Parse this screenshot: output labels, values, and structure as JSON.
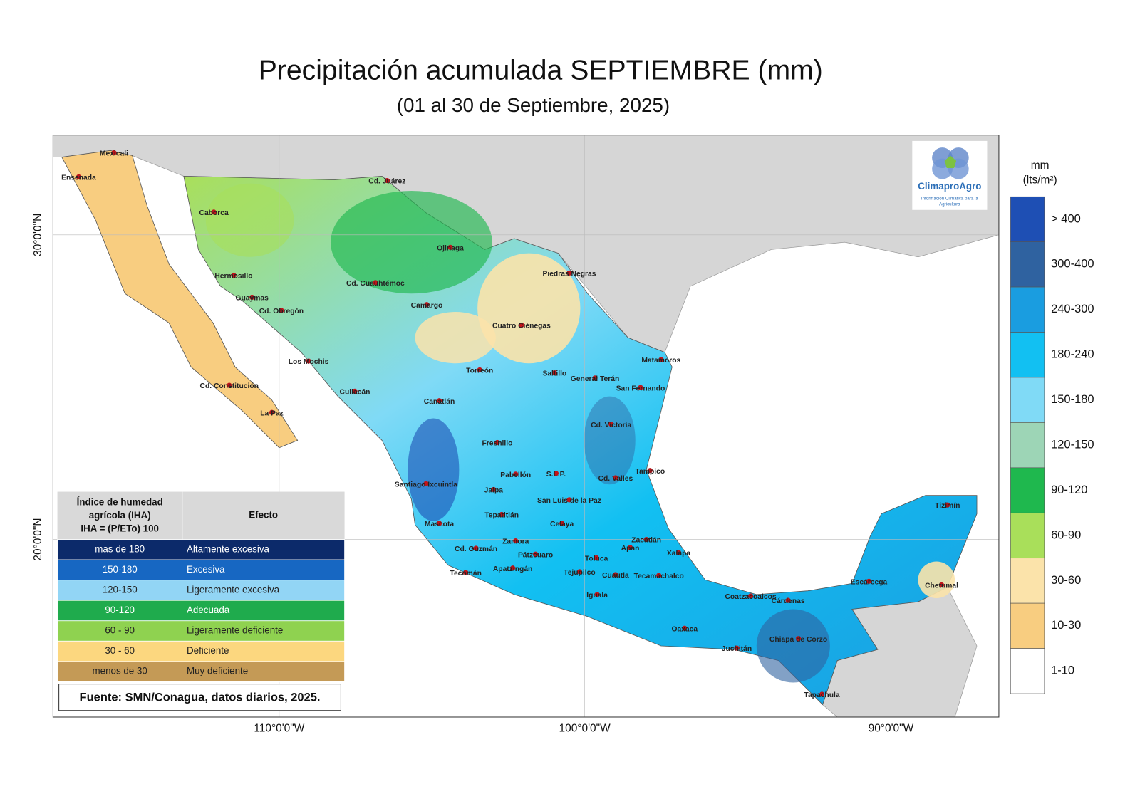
{
  "title": "Precipitación acumulada SEPTIEMBRE (mm)",
  "subtitle": "(01 al 30 de Septiembre, 2025)",
  "map": {
    "latitude_labels": [
      "30°0'0\"N",
      "20°0'0\"N"
    ],
    "longitude_labels": [
      "110°0'0\"W",
      "100°0'0\"W",
      "90°0'0\"W"
    ],
    "cities": [
      "Mexicali",
      "Ensenada",
      "Cd. Juárez",
      "Caborca",
      "Ojinaga",
      "Hermosillo",
      "Piedras Negras",
      "Cd. Cuauhtémoc",
      "Guaymas",
      "Camargo",
      "Cd. Obregón",
      "Cuatro Ciénegas",
      "Matamoros",
      "Los Mochis",
      "Torreón",
      "Saltillo",
      "General Terán",
      "San Fernando",
      "Cd. Constitución",
      "Culiacán",
      "Canatlán",
      "La Paz",
      "Cd. Victoria",
      "Fresnillo",
      "Tampico",
      "Pabellón",
      "S.L.P.",
      "Cd. Valles",
      "Santiago Ixcuintla",
      "Jalpa",
      "San Luis de la Paz",
      "Tizimín",
      "Tepatitlán",
      "Mascota",
      "Celaya",
      "Zacatlán",
      "Cd. Guzmán",
      "Zamora",
      "Apan",
      "Xalapa",
      "Pátzcuaro",
      "Toluca",
      "Tecomán",
      "Apatzingán",
      "Tejupilco",
      "Cuautla",
      "Tecamachalco",
      "Escárcega",
      "Chetumal",
      "Coatzacoalcos",
      "Cárdenas",
      "Iguala",
      "Oaxaca",
      "Chiapa de Corzo",
      "Juchitán",
      "Tapachula"
    ]
  },
  "legend": {
    "unit": "mm",
    "unit_detail": "(lts/m²)",
    "classes": [
      {
        "label": "> 400",
        "color": "#1e4fb4"
      },
      {
        "label": "300-400",
        "color": "#2f62a0"
      },
      {
        "label": "240-300",
        "color": "#1a9de0"
      },
      {
        "label": "180-240",
        "color": "#12c0f2"
      },
      {
        "label": "150-180",
        "color": "#80daf6"
      },
      {
        "label": "120-150",
        "color": "#9dd5b6"
      },
      {
        "label": "90-120",
        "color": "#1fb84e"
      },
      {
        "label": "60-90",
        "color": "#a9df5a"
      },
      {
        "label": "30-60",
        "color": "#fbe3aa"
      },
      {
        "label": "10-30",
        "color": "#f8cd80"
      },
      {
        "label": "1-10",
        "color": "#ffffff"
      }
    ]
  },
  "table": {
    "header": [
      [
        "Índice de humedad",
        "agrícola (IHA)",
        "IHA = (P/ETo) 100"
      ],
      "Efecto"
    ],
    "rows": [
      {
        "cells": [
          "mas de 180",
          "Altamente excesiva"
        ],
        "color": "#0c2a6a",
        "text_color": "#ffffff"
      },
      {
        "cells": [
          "150-180",
          "Excesiva"
        ],
        "color": "#1767c2",
        "text_color": "#ffffff"
      },
      {
        "cells": [
          "120-150",
          "Ligeramente excesiva"
        ],
        "color": "#92d5f5",
        "text_color": "#222222"
      },
      {
        "cells": [
          "90-120",
          "Adecuada"
        ],
        "color": "#1fab4d",
        "text_color": "#ffffff"
      },
      {
        "cells": [
          "60 - 90",
          "Ligeramente deficiente"
        ],
        "color": "#8fd250",
        "text_color": "#222222"
      },
      {
        "cells": [
          "30 - 60",
          "Deficiente"
        ],
        "color": "#fcd77f",
        "text_color": "#222222"
      },
      {
        "cells": [
          "menos de 30",
          "Muy deficiente"
        ],
        "color": "#c49a56",
        "text_color": "#222222"
      }
    ]
  },
  "source": "Fuente: SMN/Conagua, datos diarios, 2025.",
  "logo": {
    "name": "ClimaproAgro",
    "tagline": [
      "Información Climática para la",
      "Agricultura"
    ]
  }
}
